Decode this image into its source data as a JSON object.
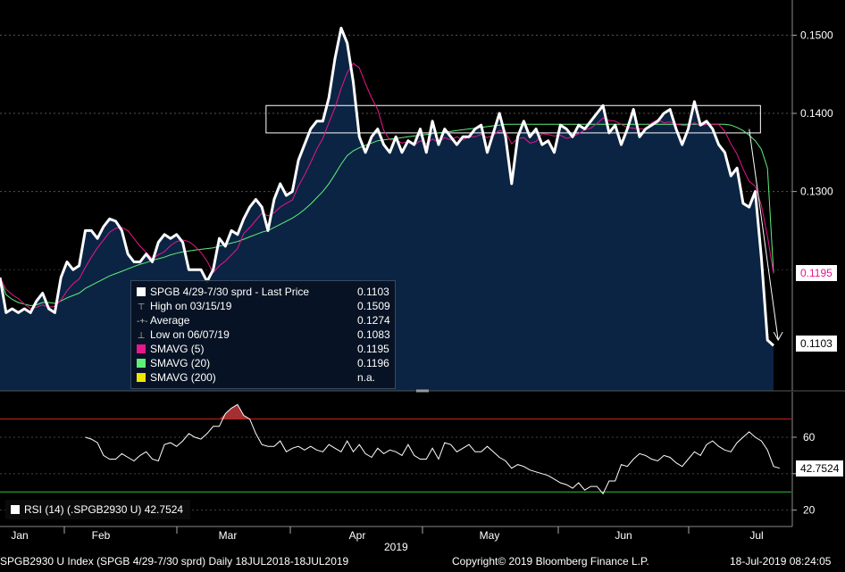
{
  "legend": {
    "items": [
      {
        "kind": "swatch",
        "color": "#ffffff",
        "label": "SPGB 4/29-7/30 sprd - Last Price",
        "value": "0.1103"
      },
      {
        "kind": "glyph",
        "glyph": "⊤",
        "label": "High on 03/15/19",
        "value": "0.1509"
      },
      {
        "kind": "glyph",
        "glyph": "-+-",
        "label": "Average",
        "value": "0.1274"
      },
      {
        "kind": "glyph",
        "glyph": "⊥",
        "label": "Low on 06/07/19",
        "value": "0.1083"
      },
      {
        "kind": "swatch",
        "color": "#e8168c",
        "label": "SMAVG (5)",
        "value": "0.1195"
      },
      {
        "kind": "swatch",
        "color": "#5ff07a",
        "label": "SMAVG (20)",
        "value": "0.1196"
      },
      {
        "kind": "swatch",
        "color": "#f2e600",
        "label": "SMAVG (200)",
        "value": "n.a."
      }
    ]
  },
  "rsi_legend": {
    "label": "RSI (14) (.SPGB2930 U) 42.7524"
  },
  "price_tags": {
    "sma5": "0.1195",
    "last": "0.1103"
  },
  "rsi_tag": "42.7524",
  "year_label": "2019",
  "footer": {
    "left": "SPGB2930 U Index (SPGB 4/29-7/30 sprd)  Daily 18JUL2018-18JUL2019",
    "center": "Copyright© 2019 Bloomberg Finance L.P.",
    "right": "18-Jul-2019 08:24:05"
  },
  "colors": {
    "price": "#ffffff",
    "area": "#0c2443",
    "sma5": "#e8168c",
    "sma20": "#5ff07a",
    "rsi_upper": "#d62020",
    "rsi_lower": "#35c23a"
  },
  "chart_data": [
    {
      "type": "line",
      "x_ticks": [
        "Jan",
        "Feb",
        "Mar",
        "Apr",
        "May",
        "Jun",
        "Jul"
      ],
      "y_ticks": [
        0.13,
        0.14,
        0.15
      ],
      "y_tick_labels": [
        "0.1300",
        "0.1400",
        "0.1500"
      ],
      "ylim": [
        0.1045,
        0.1545
      ],
      "x_count": 128,
      "annotations": [
        {
          "type": "rectangle",
          "x_range": [
            45,
            125
          ],
          "y_range": [
            0.1375,
            0.141
          ]
        },
        {
          "type": "arrow",
          "from": [
            123,
            0.138
          ],
          "to": [
            126,
            0.111
          ]
        }
      ],
      "series": [
        {
          "name": "SPGB 4/29-7/30 sprd - Last Price",
          "values": [
            0.119,
            0.1145,
            0.115,
            0.1145,
            0.115,
            0.1145,
            0.116,
            0.117,
            0.115,
            0.1145,
            0.119,
            0.121,
            0.12,
            0.1205,
            0.125,
            0.125,
            0.124,
            0.1255,
            0.1265,
            0.1262,
            0.125,
            0.122,
            0.121,
            0.121,
            0.122,
            0.121,
            0.1235,
            0.1245,
            0.124,
            0.1245,
            0.1235,
            0.12,
            0.12,
            0.12,
            0.1185,
            0.12,
            0.124,
            0.123,
            0.125,
            0.1245,
            0.1265,
            0.128,
            0.129,
            0.128,
            0.125,
            0.129,
            0.131,
            0.1295,
            0.13,
            0.134,
            0.136,
            0.138,
            0.139,
            0.139,
            0.142,
            0.147,
            0.1509,
            0.149,
            0.144,
            0.137,
            0.135,
            0.137,
            0.138,
            0.136,
            0.135,
            0.137,
            0.135,
            0.1365,
            0.136,
            0.138,
            0.135,
            0.139,
            0.136,
            0.138,
            0.137,
            0.136,
            0.137,
            0.137,
            0.138,
            0.1385,
            0.135,
            0.1375,
            0.14,
            0.137,
            0.131,
            0.137,
            0.139,
            0.137,
            0.138,
            0.136,
            0.1365,
            0.135,
            0.1385,
            0.138,
            0.137,
            0.1385,
            0.138,
            0.139,
            0.14,
            0.141,
            0.1375,
            0.1385,
            0.136,
            0.138,
            0.1405,
            0.137,
            0.138,
            0.1385,
            0.139,
            0.14,
            0.1405,
            0.138,
            0.136,
            0.138,
            0.1415,
            0.1385,
            0.139,
            0.138,
            0.136,
            0.135,
            0.132,
            0.133,
            0.1285,
            0.128,
            0.13,
            0.1215,
            0.111,
            0.1103
          ]
        },
        {
          "name": "SMAVG (5)",
          "values": [
            0.119,
            0.1175,
            0.1168,
            0.1163,
            0.1156,
            0.115,
            0.1152,
            0.1155,
            0.1152,
            0.1153,
            0.1161,
            0.1173,
            0.1182,
            0.1188,
            0.1203,
            0.1216,
            0.1228,
            0.1238,
            0.1248,
            0.1253,
            0.1254,
            0.125,
            0.124,
            0.123,
            0.1222,
            0.1214,
            0.1219,
            0.1223,
            0.1231,
            0.1236,
            0.1238,
            0.1236,
            0.123,
            0.1222,
            0.1211,
            0.1196,
            0.1205,
            0.1211,
            0.1219,
            0.1227,
            0.1246,
            0.1254,
            0.1263,
            0.1272,
            0.1269,
            0.1273,
            0.128,
            0.1285,
            0.1289,
            0.1307,
            0.1321,
            0.1337,
            0.1354,
            0.1368,
            0.1388,
            0.1407,
            0.1432,
            0.1452,
            0.1464,
            0.1458,
            0.1438,
            0.142,
            0.1405,
            0.1378,
            0.1366,
            0.1366,
            0.1362,
            0.1364,
            0.1359,
            0.1365,
            0.1361,
            0.1367,
            0.1363,
            0.1369,
            0.1366,
            0.137,
            0.1366,
            0.137,
            0.137,
            0.1373,
            0.1369,
            0.1372,
            0.1378,
            0.1376,
            0.1361,
            0.1368,
            0.1369,
            0.1362,
            0.1364,
            0.1374,
            0.1373,
            0.1371,
            0.1372,
            0.1368,
            0.137,
            0.1374,
            0.1379,
            0.1381,
            0.1387,
            0.1394,
            0.1391,
            0.139,
            0.1386,
            0.1382,
            0.1381,
            0.138,
            0.138,
            0.1388,
            0.1392,
            0.1388,
            0.1389,
            0.1386,
            0.1385,
            0.1384,
            0.1388,
            0.1384,
            0.1386,
            0.1386,
            0.1386,
            0.1377,
            0.1361,
            0.1348,
            0.1329,
            0.1313,
            0.1307,
            0.1282,
            0.1243,
            0.1195
          ]
        },
        {
          "name": "SMAVG (20)",
          "values": [
            0.119,
            0.1168,
            0.1162,
            0.1158,
            0.1156,
            0.1154,
            0.1155,
            0.1158,
            0.1158,
            0.1157,
            0.116,
            0.1164,
            0.1167,
            0.117,
            0.1176,
            0.118,
            0.1184,
            0.1188,
            0.1192,
            0.1195,
            0.1198,
            0.1201,
            0.1204,
            0.1207,
            0.1209,
            0.1212,
            0.1214,
            0.1216,
            0.1219,
            0.1221,
            0.1223,
            0.1224,
            0.1225,
            0.1226,
            0.1227,
            0.1228,
            0.123,
            0.1232,
            0.1234,
            0.1236,
            0.1239,
            0.1242,
            0.1245,
            0.1248,
            0.125,
            0.1254,
            0.1258,
            0.1262,
            0.1266,
            0.1271,
            0.1277,
            0.1284,
            0.1292,
            0.13,
            0.131,
            0.1322,
            0.1335,
            0.1346,
            0.1352,
            0.1356,
            0.1359,
            0.1362,
            0.1365,
            0.1366,
            0.1367,
            0.1368,
            0.1369,
            0.137,
            0.1371,
            0.1372,
            0.1373,
            0.1374,
            0.1375,
            0.1376,
            0.1377,
            0.1378,
            0.1379,
            0.138,
            0.1381,
            0.1382,
            0.1383,
            0.1384,
            0.1385,
            0.1386,
            0.1386,
            0.1386,
            0.1386,
            0.1386,
            0.1386,
            0.1386,
            0.1386,
            0.1386,
            0.1386,
            0.1386,
            0.1386,
            0.1386,
            0.1386,
            0.1386,
            0.1386,
            0.1386,
            0.1386,
            0.1386,
            0.1386,
            0.1386,
            0.1386,
            0.1386,
            0.1386,
            0.1386,
            0.1386,
            0.1386,
            0.1386,
            0.1386,
            0.1386,
            0.1386,
            0.1386,
            0.1386,
            0.1386,
            0.1386,
            0.1386,
            0.1386,
            0.1385,
            0.1382,
            0.1378,
            0.1372,
            0.1365,
            0.1354,
            0.133,
            0.1196
          ]
        }
      ]
    },
    {
      "type": "line",
      "y_ticks": [
        20,
        60
      ],
      "y_tick_labels": [
        "20",
        "60"
      ],
      "ylim": [
        11,
        85
      ],
      "reference_lines": [
        {
          "value": 70,
          "color": "#d62020"
        },
        {
          "value": 30,
          "color": "#35c23a"
        }
      ],
      "x_count": 128,
      "series": [
        {
          "name": "RSI (14) (.SPGB2930 U)",
          "values": [
            null,
            null,
            null,
            null,
            null,
            null,
            null,
            null,
            null,
            null,
            null,
            null,
            null,
            null,
            60,
            59,
            57,
            50,
            48,
            48,
            51,
            49,
            47,
            50,
            52,
            48,
            47,
            56,
            57,
            55,
            58,
            62,
            60,
            59,
            62,
            66,
            66,
            73,
            76,
            78,
            72,
            70,
            62,
            56,
            55,
            55,
            58,
            52,
            54,
            55,
            53,
            55,
            53,
            52,
            56,
            54,
            52,
            58,
            52,
            56,
            51,
            49,
            54,
            51,
            53,
            52,
            50,
            56,
            50,
            48,
            48,
            54,
            48,
            57,
            56,
            52,
            54,
            56,
            52,
            52,
            55,
            52,
            49,
            47,
            43,
            45,
            44,
            42,
            41,
            40,
            39,
            37,
            35,
            34,
            32,
            35,
            31,
            33,
            33,
            29,
            36,
            36,
            45,
            44,
            48,
            51,
            50,
            48,
            47,
            50,
            49,
            46,
            44,
            48,
            52,
            50,
            56,
            58,
            55,
            53,
            52,
            57,
            60,
            63,
            60,
            58,
            53,
            44,
            43
          ]
        }
      ]
    }
  ]
}
